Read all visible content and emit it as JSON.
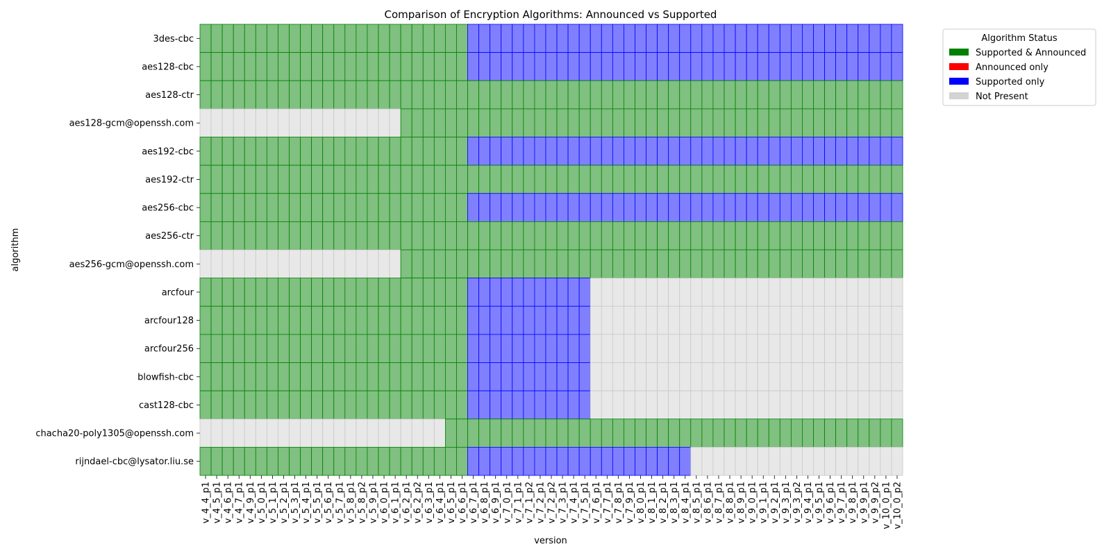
{
  "chart_data": {
    "type": "heatmap",
    "title": "Comparison of Encryption Algorithms: Announced vs Supported",
    "xlabel": "version",
    "ylabel": "algorithm",
    "x": [
      "v_4_4_p1",
      "v_4_5_p1",
      "v_4_6_p1",
      "v_4_7_p1",
      "v_4_9_p1",
      "v_5_0_p1",
      "v_5_1_p1",
      "v_5_2_p1",
      "v_5_3_p1",
      "v_5_4_p1",
      "v_5_5_p1",
      "v_5_6_p1",
      "v_5_7_p1",
      "v_5_8_p1",
      "v_5_8_p2",
      "v_5_9_p1",
      "v_6_0_p1",
      "v_6_1_p1",
      "v_6_2_p1",
      "v_6_2_p2",
      "v_6_3_p1",
      "v_6_4_p1",
      "v_6_5_p1",
      "v_6_6_p1",
      "v_6_7_p1",
      "v_6_8_p1",
      "v_6_9_p1",
      "v_7_0_p1",
      "v_7_1_p1",
      "v_7_1_p2",
      "v_7_2_p1",
      "v_7_2_p2",
      "v_7_3_p1",
      "v_7_4_p1",
      "v_7_5_p1",
      "v_7_6_p1",
      "v_7_7_p1",
      "v_7_8_p1",
      "v_7_9_p1",
      "v_8_0_p1",
      "v_8_1_p1",
      "v_8_2_p1",
      "v_8_3_p1",
      "v_8_4_p1",
      "v_8_5_p1",
      "v_8_6_p1",
      "v_8_7_p1",
      "v_8_8_p1",
      "v_8_9_p1",
      "v_9_0_p1",
      "v_9_1_p1",
      "v_9_2_p1",
      "v_9_3_p1",
      "v_9_3_p2",
      "v_9_4_p1",
      "v_9_5_p1",
      "v_9_6_p1",
      "v_9_7_p1",
      "v_9_8_p1",
      "v_9_9_p1",
      "v_9_9_p2",
      "v_10_0_p1",
      "v_10_0_p2"
    ],
    "y": [
      "3des-cbc",
      "aes128-cbc",
      "aes128-ctr",
      "aes128-gcm@openssh.com",
      "aes192-cbc",
      "aes192-ctr",
      "aes256-cbc",
      "aes256-ctr",
      "aes256-gcm@openssh.com",
      "arcfour",
      "arcfour128",
      "arcfour256",
      "blowfish-cbc",
      "cast128-cbc",
      "chacha20-poly1305@openssh.com",
      "rijndael-cbc@lysator.liu.se"
    ],
    "status_codes": {
      "0": "Not Present",
      "1": "Supported & Announced",
      "2": "Announced only",
      "3": "Supported only"
    },
    "cell_colors": {
      "0": "#e8e8e8",
      "1": "#80c080",
      "2": "#ff8080",
      "3": "#8080ff"
    },
    "cell_borders": {
      "0": "#c8c8c8",
      "1": "#008000",
      "2": "#ff0000",
      "3": "#0000ff"
    },
    "rows": [
      "111111111111111111111111333333333333333333333333333333333333333",
      "111111111111111111111111333333333333333333333333333333333333333",
      "111111111111111111111111111111111111111111111111111111111111111",
      "000000000000000000111111111111111111111111111111111111111111111",
      "111111111111111111111111333333333333333333333333333333333333333",
      "111111111111111111111111111111111111111111111111111111111111111",
      "111111111111111111111111333333333333333333333333333333333333333",
      "111111111111111111111111111111111111111111111111111111111111111",
      "000000000000000000111111111111111111111111111111111111111111111",
      "111111111111111111111111333333333330000000000000000000000000000",
      "111111111111111111111111333333333330000000000000000000000000000",
      "111111111111111111111111333333333330000000000000000000000000000",
      "111111111111111111111111333333333330000000000000000000000000000",
      "111111111111111111111111333333333330000000000000000000000000000",
      "000000000000000000000011111111111111111111111111111111111111111",
      "111111111111111111111111333333333333333333330000000000000000000"
    ],
    "legend": {
      "title": "Algorithm Status",
      "placement": "top-right outside",
      "entries": [
        {
          "label": "Supported & Announced",
          "color": "#008000"
        },
        {
          "label": "Announced only",
          "color": "#ff0000"
        },
        {
          "label": "Supported only",
          "color": "#0000ff"
        },
        {
          "label": "Not Present",
          "color": "#d3d3d3"
        }
      ]
    }
  }
}
